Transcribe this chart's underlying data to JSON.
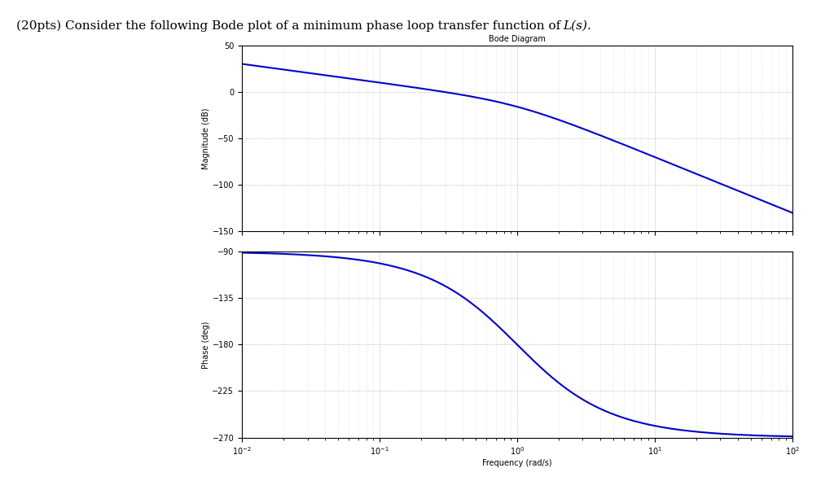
{
  "title": "Bode Diagram",
  "xlabel": "Frequency (rad/s)",
  "ylabel_mag": "Magnitude (dB)",
  "ylabel_phase": "Phase (deg)",
  "freq_min": 0.01,
  "freq_max": 100,
  "mag_ylim": [
    -150,
    50
  ],
  "mag_yticks": [
    50,
    0,
    -50,
    -100,
    -150
  ],
  "phase_ylim": [
    -270,
    -90
  ],
  "phase_yticks": [
    -90,
    -135,
    -180,
    -225,
    -270
  ],
  "line_color": "#0000CC",
  "line_width": 1.5,
  "background_color": "#ffffff",
  "K": 0.316,
  "pole_a": 1.0,
  "header_text": "(20pts) Consider the following Bode plot of a minimum phase loop transfer function of ",
  "header_italic": "L(s).",
  "fig_width": 10.24,
  "fig_height": 6.18
}
